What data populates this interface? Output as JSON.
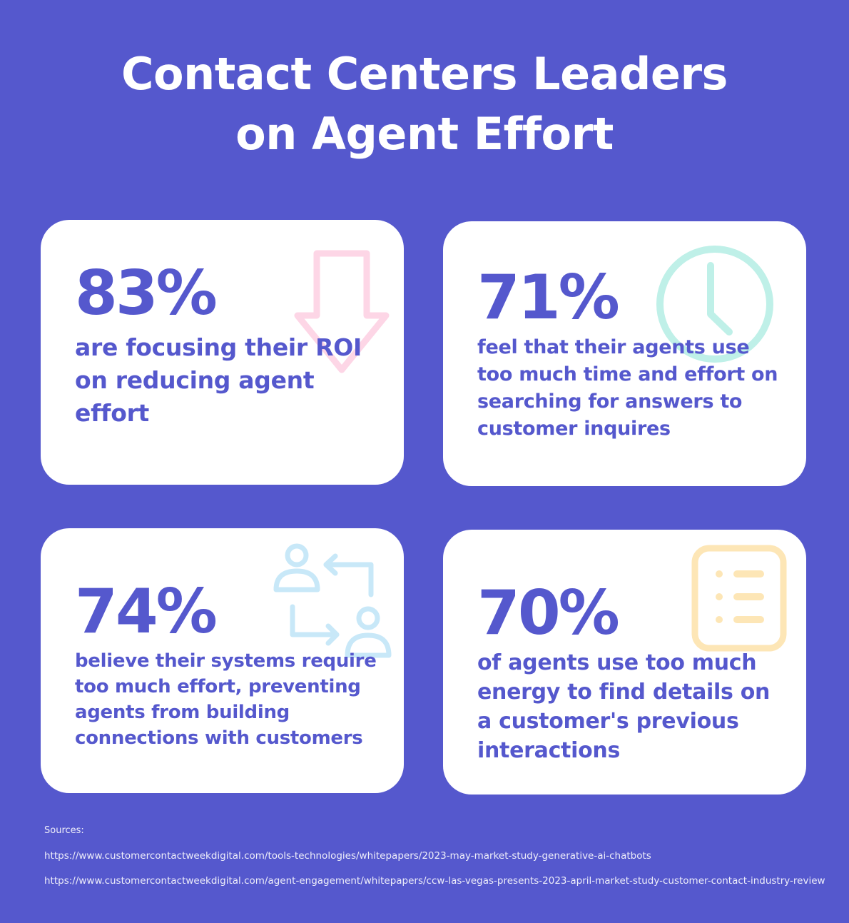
{
  "header": {
    "title_line1": "Contact Centers Leaders",
    "title_line2": "on Agent Effort"
  },
  "cards": [
    {
      "stat": "83%",
      "description": "are focusing their ROI on reducing agent effort",
      "icon": "arrow-down-icon",
      "icon_color": "#fdd6e6"
    },
    {
      "stat": "71%",
      "description": "feel that their agents use too much time and effort on searching for answers to customer inquires",
      "icon": "clock-icon",
      "icon_color": "#bff0e8"
    },
    {
      "stat": "74%",
      "description": "believe their systems require too much effort, preventing agents from building connections with customers",
      "icon": "user-transfer-icon",
      "icon_color": "#c8e8f8"
    },
    {
      "stat": "70%",
      "description": "of agents use too much energy to find details on a customer's previous interactions",
      "icon": "list-document-icon",
      "icon_color": "#fde6b6"
    }
  ],
  "sources": {
    "label": "Sources:",
    "links": [
      "https://www.customercontactweekdigital.com/tools-technologies/whitepapers/2023-may-market-study-generative-ai-chatbots",
      "https://www.customercontactweekdigital.com/agent-engagement/whitepapers/ccw-las-vegas-presents-2023-april-market-study-customer-contact-industry-review"
    ]
  },
  "colors": {
    "background": "#5558cd",
    "card": "#ffffff",
    "accent": "#5558cd"
  }
}
